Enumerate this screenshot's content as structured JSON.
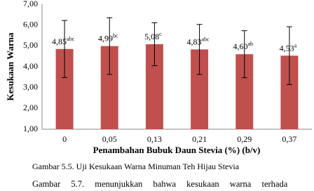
{
  "chart_data": {
    "type": "bar",
    "categories": [
      "0",
      "0,05",
      "0,13",
      "0,21",
      "0,29",
      "0,37"
    ],
    "values": [
      4.85,
      4.99,
      5.08,
      4.83,
      4.6,
      4.53
    ],
    "value_labels": [
      "4,85",
      "4,99",
      "5,08",
      "4,83",
      "4,60",
      "4,53"
    ],
    "notations": [
      "abc",
      "bc",
      "c",
      "abc",
      "ab",
      "a"
    ],
    "errors": [
      1.37,
      1.36,
      1.03,
      1.2,
      1.13,
      1.39
    ],
    "color": "#c0504d",
    "ylim": [
      1,
      7
    ],
    "yticks": [
      {
        "value": 1,
        "label": "1,00"
      },
      {
        "value": 2,
        "label": "2,00"
      },
      {
        "value": 3,
        "label": "3,00"
      },
      {
        "value": 4,
        "label": "4,00"
      },
      {
        "value": 5,
        "label": "5,00"
      },
      {
        "value": 6,
        "label": "6,00"
      },
      {
        "value": 7,
        "label": "7,00"
      }
    ],
    "grid": false,
    "xlabel": "Penambahan Bubuk Daun Stevia (%) (b/v)",
    "ylabel": "Kesukaan Warna"
  },
  "caption": "Gambar 5.5. Uji Kesukaan Warna Minuman Teh Hijau Stevia",
  "body_text": "Gambar 5.7. menunjukkan bahwa kesukaan warna terhada"
}
